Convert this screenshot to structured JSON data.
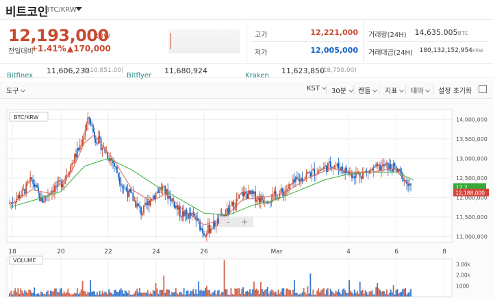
{
  "header": {
    "title": "비트코인",
    "pair": "BTC/KRW",
    "price": "12,193,000",
    "price_unit": "KRW",
    "change_label": "전일대비",
    "change_pct": "+1.41%",
    "change_amt": "▲170,000",
    "high_label": "고가",
    "high_value": "12,221,000",
    "low_label": "저가",
    "low_value": "12,005,000",
    "vol_label": "거래량(24H)",
    "vol_value": "14,635.005",
    "vol_unit": "BTC",
    "amt_label": "거래대금(24H)",
    "amt_value": "180,132,152,954",
    "amt_unit": "KRW"
  },
  "exchanges": [
    {
      "name": "Bitfinex",
      "price": "11,606,230",
      "usd": "($10,851.00)"
    },
    {
      "name": "Bitflyer",
      "price": "11,680,924",
      "usd": ""
    },
    {
      "name": "Kraken",
      "price": "11,623,850",
      "usd": "(€8,750.00)"
    }
  ],
  "toolbar": {
    "tools": "도구",
    "tz": "KST",
    "interval": "30분",
    "candle": "캔들",
    "indicator": "지표",
    "theme": "테마",
    "reset": "설정 초기화"
  },
  "colors": {
    "up": "#c84a31",
    "down": "#1261c4",
    "ma_short": "#e07060",
    "ma_long": "#4bb24b",
    "accent": "#1261c4"
  },
  "chart_data": {
    "type": "candlestick",
    "label": "BTC/KRW",
    "x_ticks": [
      "18",
      "20",
      "22",
      "24",
      "26",
      "Mar",
      "4",
      "6",
      "8"
    ],
    "y_ticks": [
      "14,000,000",
      "13,500,000",
      "13,000,000",
      "12,500,000",
      "12,000,000",
      "11,500,000",
      "11,000,000"
    ],
    "ylim": [
      10850000,
      14250000
    ],
    "price_tag_green": "12,2..",
    "price_tag_red": "12,188,000",
    "volume": {
      "label": "VOLUME",
      "y_ticks": [
        "3.00k",
        "2.00k",
        "1000"
      ],
      "ylim": [
        0,
        3500
      ]
    },
    "close_series": [
      {
        "x": 17.9,
        "y": 11850000
      },
      {
        "x": 18.4,
        "y": 12100000
      },
      {
        "x": 18.8,
        "y": 12450000
      },
      {
        "x": 19.2,
        "y": 11900000
      },
      {
        "x": 19.6,
        "y": 12200000
      },
      {
        "x": 20.0,
        "y": 12350000
      },
      {
        "x": 20.4,
        "y": 12800000
      },
      {
        "x": 20.8,
        "y": 13300000
      },
      {
        "x": 21.0,
        "y": 13700000
      },
      {
        "x": 21.2,
        "y": 14050000
      },
      {
        "x": 21.4,
        "y": 13600000
      },
      {
        "x": 21.8,
        "y": 13250000
      },
      {
        "x": 22.2,
        "y": 12900000
      },
      {
        "x": 22.6,
        "y": 12300000
      },
      {
        "x": 23.0,
        "y": 12000000
      },
      {
        "x": 23.4,
        "y": 11600000
      },
      {
        "x": 23.8,
        "y": 12000000
      },
      {
        "x": 24.2,
        "y": 12250000
      },
      {
        "x": 24.6,
        "y": 12000000
      },
      {
        "x": 25.0,
        "y": 11600000
      },
      {
        "x": 25.6,
        "y": 11500000
      },
      {
        "x": 26.0,
        "y": 11100000
      },
      {
        "x": 26.4,
        "y": 11300000
      },
      {
        "x": 26.8,
        "y": 11500000
      },
      {
        "x": 27.2,
        "y": 11800000
      },
      {
        "x": 27.6,
        "y": 12100000
      },
      {
        "x": 28.0,
        "y": 12050000
      },
      {
        "x": 28.4,
        "y": 11950000
      },
      {
        "x": 28.8,
        "y": 12000000
      },
      {
        "x": 29.3,
        "y": 12150000
      },
      {
        "x": 29.8,
        "y": 12400000
      },
      {
        "x": 30.3,
        "y": 12600000
      },
      {
        "x": 30.8,
        "y": 12700000
      },
      {
        "x": 31.3,
        "y": 12850000
      },
      {
        "x": 31.7,
        "y": 12750000
      },
      {
        "x": 32.1,
        "y": 12600000
      },
      {
        "x": 32.5,
        "y": 12600000
      },
      {
        "x": 33.0,
        "y": 12700000
      },
      {
        "x": 33.5,
        "y": 12800000
      },
      {
        "x": 33.9,
        "y": 12750000
      },
      {
        "x": 34.3,
        "y": 12500000
      },
      {
        "x": 34.6,
        "y": 12200000
      }
    ],
    "ma_short": [
      {
        "x": 17.9,
        "y": 11800000
      },
      {
        "x": 18.8,
        "y": 12200000
      },
      {
        "x": 19.6,
        "y": 12100000
      },
      {
        "x": 20.4,
        "y": 12600000
      },
      {
        "x": 21.0,
        "y": 13400000
      },
      {
        "x": 21.4,
        "y": 13600000
      },
      {
        "x": 22.2,
        "y": 13000000
      },
      {
        "x": 23.0,
        "y": 12200000
      },
      {
        "x": 23.8,
        "y": 11900000
      },
      {
        "x": 24.4,
        "y": 12100000
      },
      {
        "x": 25.0,
        "y": 11750000
      },
      {
        "x": 26.0,
        "y": 11300000
      },
      {
        "x": 26.8,
        "y": 11450000
      },
      {
        "x": 27.6,
        "y": 11950000
      },
      {
        "x": 28.4,
        "y": 12000000
      },
      {
        "x": 29.3,
        "y": 12100000
      },
      {
        "x": 30.3,
        "y": 12500000
      },
      {
        "x": 31.3,
        "y": 12750000
      },
      {
        "x": 32.1,
        "y": 12650000
      },
      {
        "x": 33.0,
        "y": 12650000
      },
      {
        "x": 33.9,
        "y": 12750000
      },
      {
        "x": 34.6,
        "y": 12300000
      }
    ],
    "ma_long": [
      {
        "x": 17.9,
        "y": 11750000
      },
      {
        "x": 19.0,
        "y": 11950000
      },
      {
        "x": 20.0,
        "y": 12150000
      },
      {
        "x": 21.0,
        "y": 12800000
      },
      {
        "x": 22.0,
        "y": 13000000
      },
      {
        "x": 23.0,
        "y": 12700000
      },
      {
        "x": 24.0,
        "y": 12300000
      },
      {
        "x": 25.0,
        "y": 11950000
      },
      {
        "x": 26.0,
        "y": 11600000
      },
      {
        "x": 27.0,
        "y": 11550000
      },
      {
        "x": 28.0,
        "y": 11800000
      },
      {
        "x": 29.0,
        "y": 11950000
      },
      {
        "x": 30.0,
        "y": 12200000
      },
      {
        "x": 31.0,
        "y": 12450000
      },
      {
        "x": 32.0,
        "y": 12600000
      },
      {
        "x": 33.0,
        "y": 12650000
      },
      {
        "x": 34.0,
        "y": 12650000
      },
      {
        "x": 34.7,
        "y": 12450000
      }
    ]
  }
}
